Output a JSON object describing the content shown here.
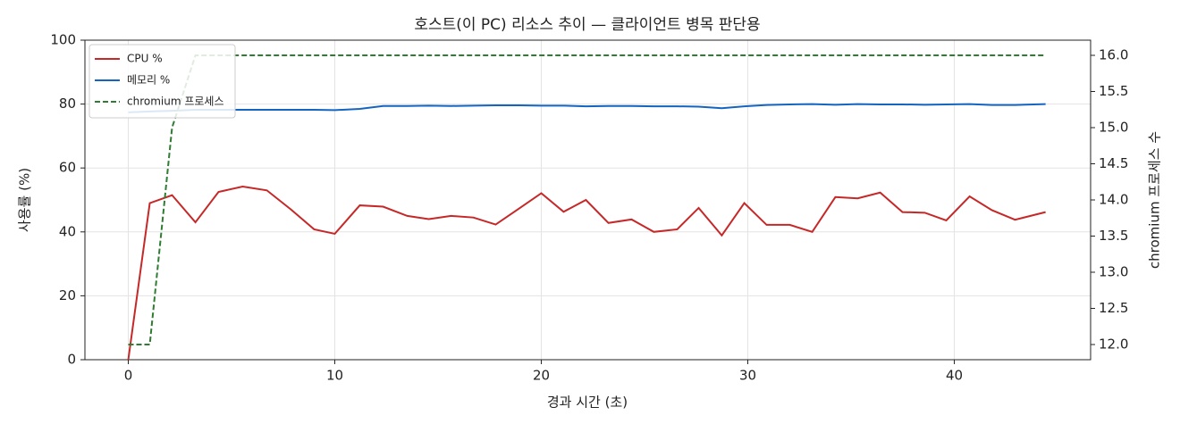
{
  "chart_data": {
    "type": "line",
    "title": "호스트(이 PC) 리소스 추이 — 클라이언트 병목 판단용",
    "x_label": "경과 시간 (초)",
    "y_label": "사용률 (%)",
    "y2_label": "chromium 프로세스 수",
    "x": [
      0,
      1.04,
      2.12,
      3.25,
      4.37,
      5.54,
      6.71,
      7.88,
      9.0,
      10.0,
      11.21,
      12.34,
      13.51,
      14.55,
      15.63,
      16.71,
      17.79,
      18.92,
      20.0,
      21.08,
      22.16,
      23.25,
      24.37,
      25.45,
      26.58,
      27.62,
      28.74,
      29.83,
      30.91,
      32.03,
      33.12,
      34.24,
      35.32,
      36.41,
      37.49,
      38.57,
      39.61,
      40.74,
      41.82,
      42.94,
      44.42
    ],
    "series": [
      {
        "name": "CPU %",
        "color": "#c62828",
        "dash": false,
        "values": [
          0,
          49,
          51.5,
          43,
          52.5,
          54.2,
          53,
          47,
          40.8,
          39.4,
          48.3,
          47.9,
          45,
          44,
          45,
          44.5,
          42.3,
          47.3,
          52.1,
          46.3,
          50,
          42.8,
          43.9,
          40,
          40.8,
          47.5,
          38.9,
          49,
          42.2,
          42.2,
          40,
          50.9,
          50.5,
          52.3,
          46.2,
          46,
          43.6,
          51.1,
          46.8,
          43.8,
          46.2
        ]
      },
      {
        "name": "메모리 %",
        "color": "#1565c0",
        "dash": false,
        "values": [
          77.4,
          77.7,
          77.9,
          78.2,
          78.2,
          78.2,
          78.2,
          78.2,
          78.2,
          78.1,
          78.5,
          79.4,
          79.4,
          79.5,
          79.4,
          79.5,
          79.6,
          79.6,
          79.5,
          79.5,
          79.3,
          79.4,
          79.4,
          79.3,
          79.3,
          79.2,
          78.7,
          79.3,
          79.7,
          79.9,
          80.0,
          79.8,
          80.0,
          79.9,
          79.9,
          79.8,
          79.9,
          80.0,
          79.7,
          79.7,
          80.0
        ]
      },
      {
        "name": "chromium 프로세스",
        "color": "#2e7d32",
        "dash": true,
        "axis": "y2",
        "values": [
          12,
          12,
          15,
          16,
          16,
          16,
          16,
          16,
          16,
          16,
          16,
          16,
          16,
          16,
          16,
          16,
          16,
          16,
          16,
          16,
          16,
          16,
          16,
          16,
          16,
          16,
          16,
          16,
          16,
          16,
          16,
          16,
          16,
          16,
          16,
          16,
          16,
          16,
          16,
          16,
          16
        ]
      }
    ],
    "xlim": [
      -2.1,
      46.6
    ],
    "xticks": [
      0,
      10,
      20,
      30,
      40
    ],
    "ylim": [
      0,
      100
    ],
    "yticks": [
      0,
      20,
      40,
      60,
      80,
      100
    ],
    "y2lim": [
      11.79,
      16.21
    ],
    "y2ticks": [
      {
        "value": 12,
        "label": "12.0"
      },
      12.5,
      {
        "value": 13,
        "label": "13.0"
      },
      13.5,
      {
        "value": 14,
        "label": "14.0"
      },
      14.5,
      {
        "value": 15,
        "label": "15.0"
      },
      15.5,
      {
        "value": 16,
        "label": "16.0"
      }
    ],
    "grid": true,
    "legend": "upper-left"
  }
}
